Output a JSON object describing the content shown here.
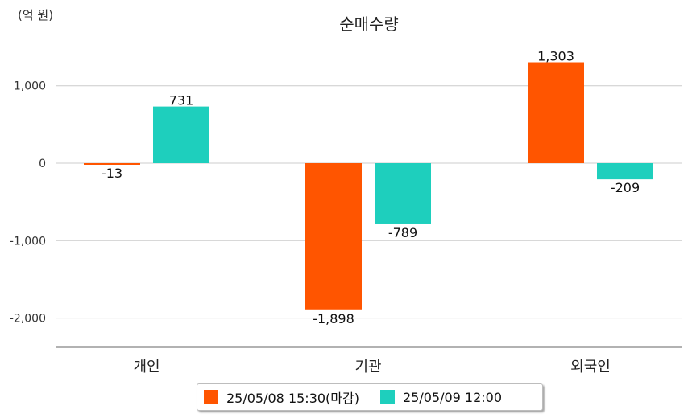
{
  "chart_data": {
    "type": "bar",
    "title": "순매수량",
    "unit_label": "(억 원)",
    "categories": [
      "개인",
      "기관",
      "외국인"
    ],
    "series": [
      {
        "name": "25/05/08 15:30(마감)",
        "color": "#ff5500",
        "values": [
          -13,
          -1898,
          1303
        ]
      },
      {
        "name": "25/05/09 12:00",
        "color": "#1ecfbd",
        "values": [
          731,
          -789,
          -209
        ]
      }
    ],
    "y_ticks": [
      1000,
      0,
      -1000,
      -2000
    ],
    "y_tick_labels": [
      "1,000",
      "0",
      "-1,000",
      "-2,000"
    ],
    "data_labels": [
      [
        "-13",
        "-1,898",
        "1,303"
      ],
      [
        "731",
        "-789",
        "-209"
      ]
    ],
    "ylim": [
      -2400,
      1450
    ],
    "grid": true,
    "legend_position": "bottom"
  }
}
